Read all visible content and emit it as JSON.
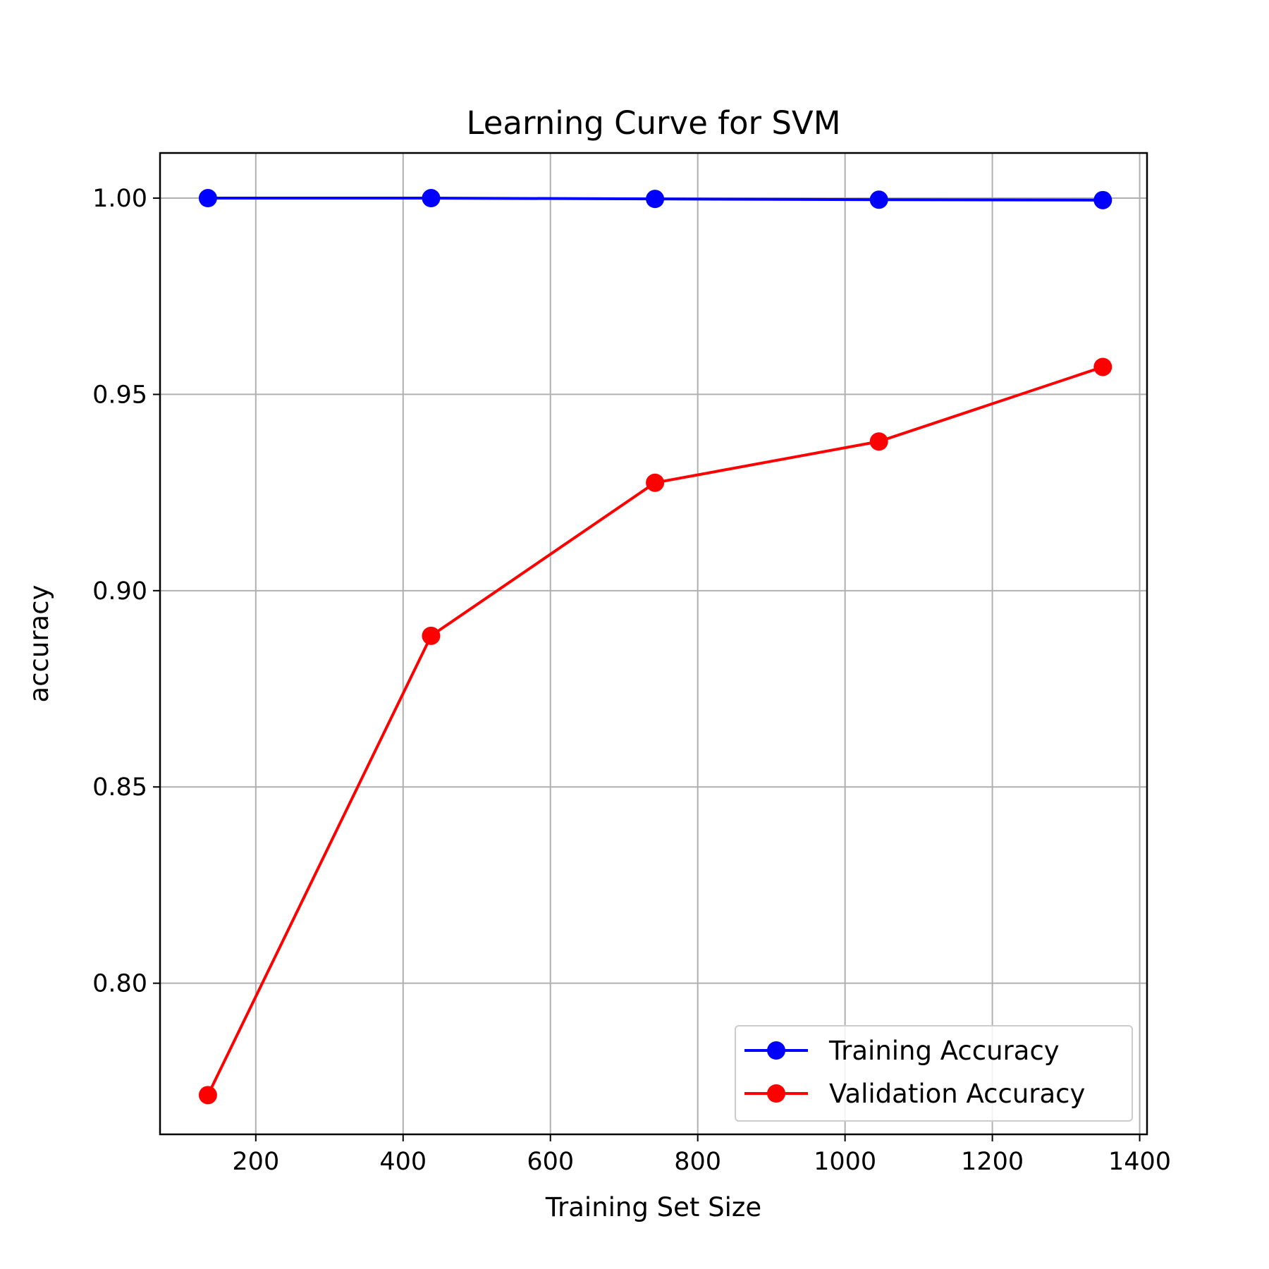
{
  "chart_data": {
    "type": "line",
    "title": "Learning Curve for SVM",
    "xlabel": "Training Set Size",
    "ylabel": "accuracy",
    "xlim": [
      70,
      1410
    ],
    "ylim": [
      0.7615,
      1.0115
    ],
    "xticks": [
      200,
      400,
      600,
      800,
      1000,
      1200,
      1400
    ],
    "xtick_labels": [
      "200",
      "400",
      "600",
      "800",
      "1000",
      "1200",
      "1400"
    ],
    "yticks": [
      0.8,
      0.85,
      0.9,
      0.95,
      1.0
    ],
    "ytick_labels": [
      "0.80",
      "0.85",
      "0.90",
      "0.95",
      "1.00"
    ],
    "grid": true,
    "legend_position": "lower-right",
    "x": [
      135,
      438,
      742,
      1046,
      1350
    ],
    "series": [
      {
        "name": "Training Accuracy",
        "color": "#0000ff",
        "marker": "circle",
        "values": [
          1.0,
          1.0,
          0.9998,
          0.9996,
          0.9995
        ]
      },
      {
        "name": "Validation Accuracy",
        "color": "#ff0000",
        "marker": "circle",
        "values": [
          0.7715,
          0.8885,
          0.9275,
          0.938,
          0.957
        ]
      }
    ]
  }
}
